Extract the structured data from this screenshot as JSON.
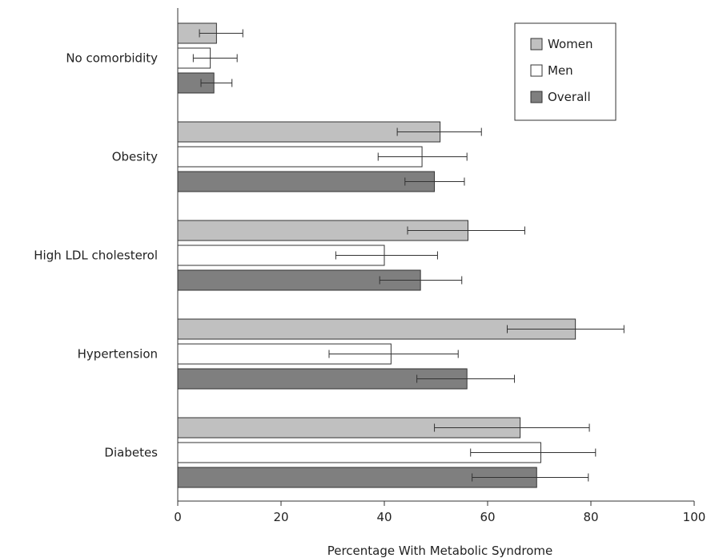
{
  "chart_data": {
    "type": "bar",
    "orientation": "horizontal",
    "categories": [
      "No comorbidity",
      "Obesity",
      "High LDL cholesterol",
      "Hypertension",
      "Diabetes"
    ],
    "series": [
      {
        "name": "Women",
        "color": "#c0c0c0",
        "values": [
          7.5,
          50.8,
          56.2,
          77.0,
          66.3
        ],
        "error_low": [
          4.2,
          42.5,
          44.5,
          63.8,
          49.7
        ],
        "error_high": [
          12.6,
          58.8,
          67.2,
          86.4,
          79.7
        ]
      },
      {
        "name": "Men",
        "color": "#ffffff",
        "values": [
          6.3,
          47.3,
          40.0,
          41.3,
          70.3
        ],
        "error_low": [
          3.0,
          38.8,
          30.6,
          29.3,
          56.7
        ],
        "error_high": [
          11.5,
          56.0,
          50.3,
          54.3,
          80.9
        ]
      },
      {
        "name": "Overall",
        "color": "#7f7f7f",
        "values": [
          7.0,
          49.7,
          47.0,
          56.0,
          69.5
        ],
        "error_low": [
          4.5,
          44.0,
          39.1,
          46.3,
          57.0
        ],
        "error_high": [
          10.5,
          55.5,
          55.0,
          65.2,
          79.5
        ]
      }
    ],
    "xlabel": "Percentage With Metabolic Syndrome",
    "xlim": [
      0,
      100
    ],
    "xticks": [
      0,
      20,
      40,
      60,
      80,
      100
    ],
    "grid": false,
    "legend_position": "top-right"
  }
}
